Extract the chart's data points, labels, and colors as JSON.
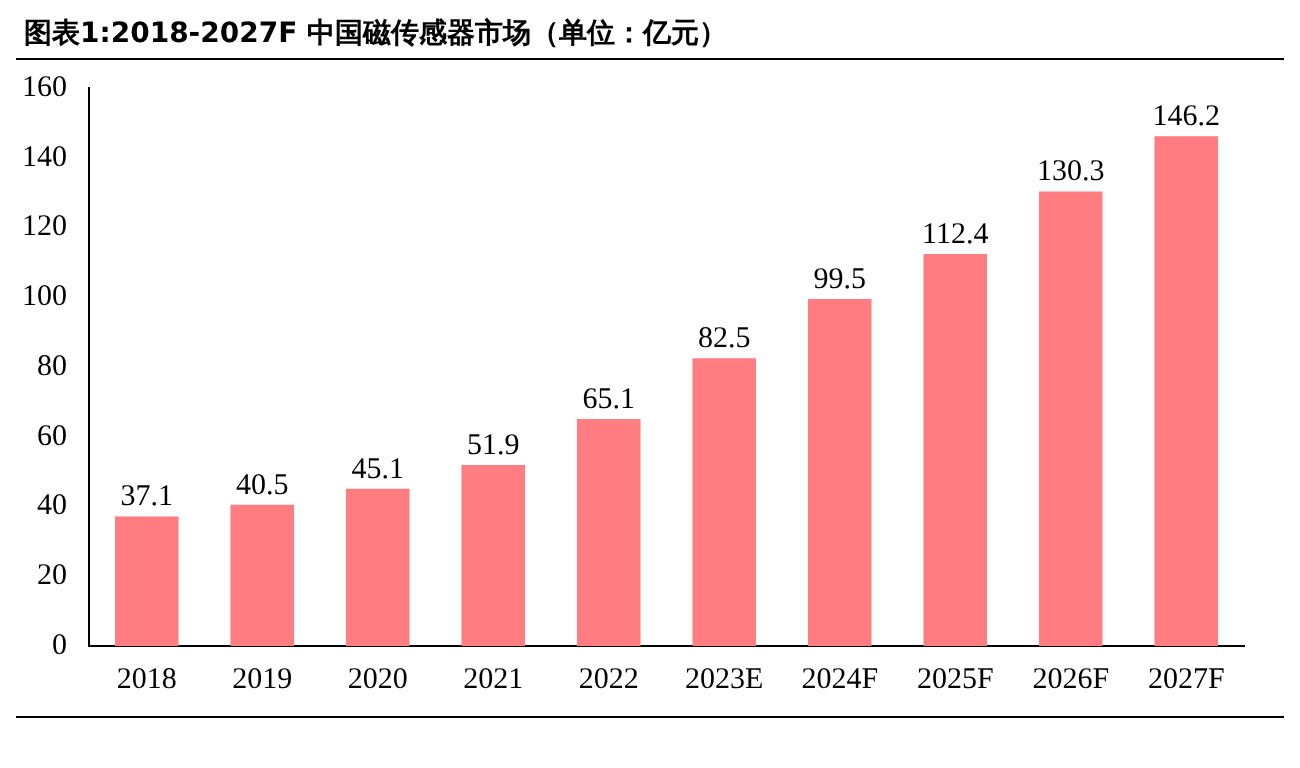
{
  "chart_data": {
    "type": "bar",
    "title": "图表1:2018-2027F 中国磁传感器市场（单位：亿元）",
    "categories": [
      "2018",
      "2019",
      "2020",
      "2021",
      "2022",
      "2023E",
      "2024F",
      "2025F",
      "2026F",
      "2027F"
    ],
    "values": [
      37.1,
      40.5,
      45.1,
      51.9,
      65.1,
      82.5,
      99.5,
      112.4,
      130.3,
      146.2
    ],
    "color": "#ff7c80",
    "ylim": [
      0,
      160
    ],
    "yticks": [
      0,
      20,
      40,
      60,
      80,
      100,
      120,
      140,
      160
    ],
    "grid": false,
    "data_labels": true,
    "legend": false
  }
}
